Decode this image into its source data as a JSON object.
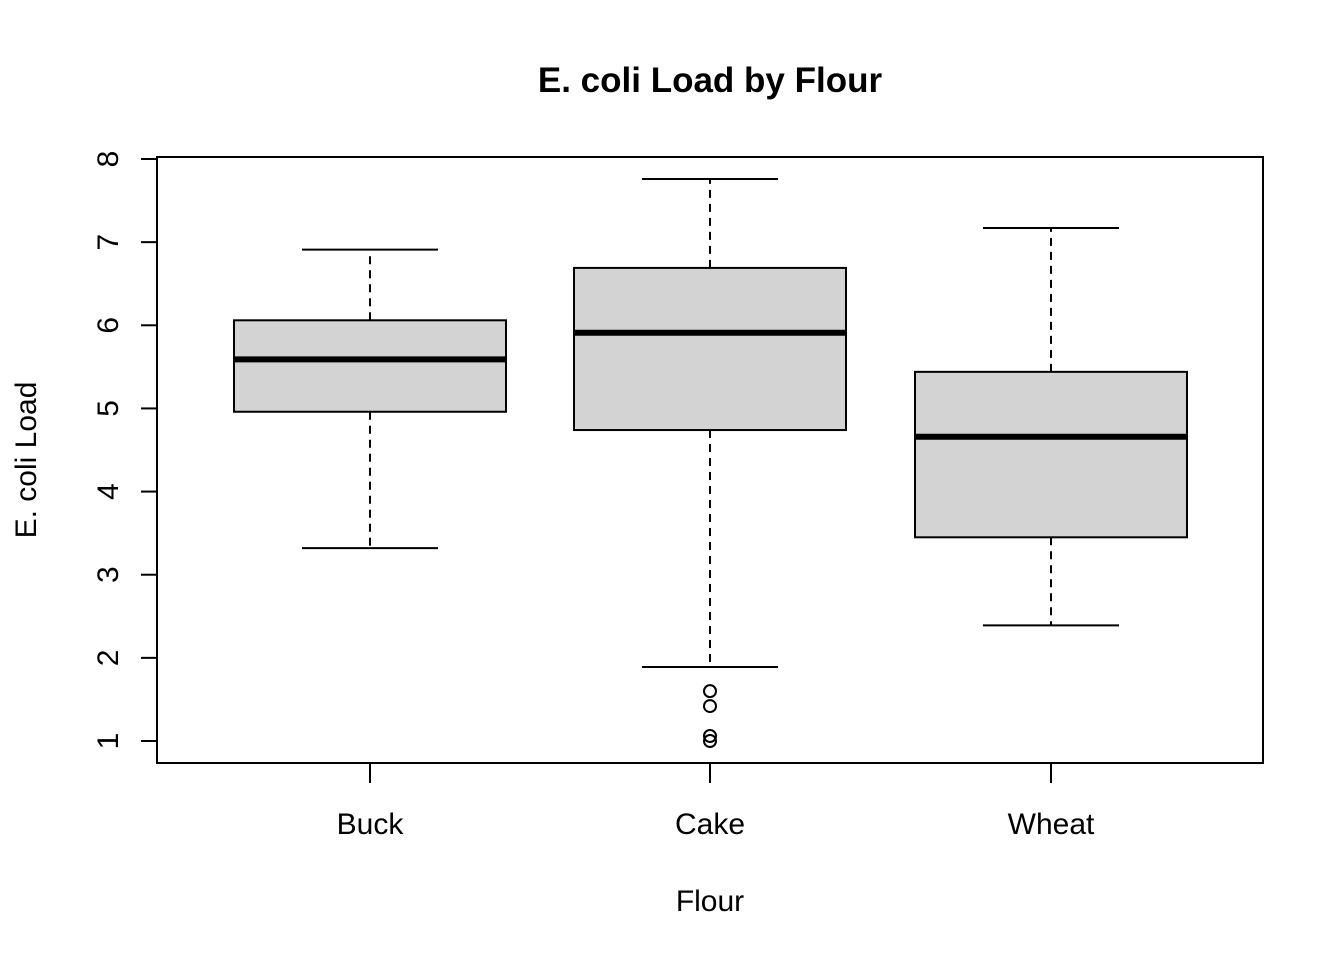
{
  "chart_data": {
    "type": "box",
    "title": "E. coli Load by Flour",
    "xlabel": "Flour",
    "ylabel": "E. coli Load",
    "categories": [
      "Buck",
      "Cake",
      "Wheat"
    ],
    "ylim": [
      0.75,
      8.0
    ],
    "yticks": [
      1,
      2,
      3,
      4,
      5,
      6,
      7,
      8
    ],
    "ytick_labels": [
      "1",
      "2",
      "3",
      "4",
      "5",
      "6",
      "7",
      "8"
    ],
    "boxes": [
      {
        "name": "Buck",
        "whisker_low": 3.32,
        "q1": 4.96,
        "median": 5.59,
        "q3": 6.06,
        "whisker_high": 6.91,
        "outliers": []
      },
      {
        "name": "Cake",
        "whisker_low": 1.89,
        "q1": 4.74,
        "median": 5.91,
        "q3": 6.69,
        "whisker_high": 7.76,
        "outliers": [
          1.6,
          1.42,
          1.06,
          1.0
        ]
      },
      {
        "name": "Wheat",
        "whisker_low": 2.39,
        "q1": 3.45,
        "median": 4.66,
        "q3": 5.44,
        "whisker_high": 7.17,
        "outliers": []
      }
    ],
    "box_fill": "#d3d3d3",
    "grid": false,
    "legend": "none"
  }
}
